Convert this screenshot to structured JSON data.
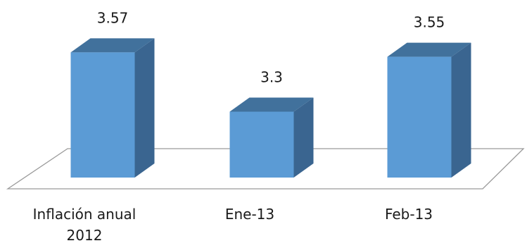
{
  "chart_data": {
    "type": "bar",
    "style": "3d-column",
    "categories": [
      [
        "Inflación anual",
        "2012"
      ],
      [
        "Ene-13"
      ],
      [
        "Feb-13"
      ]
    ],
    "values": [
      3.57,
      3.3,
      3.55
    ],
    "value_labels": [
      "3.57",
      "3.3",
      "3.55"
    ],
    "title": "",
    "xlabel": "",
    "ylabel": "",
    "ylim": [
      3.0,
      3.6
    ],
    "grid": false,
    "legend": "none",
    "colors": {
      "front": "#5B9BD5",
      "top": "#41719C",
      "side": "#3A6590",
      "floor_line": "#9A9A9A"
    }
  }
}
